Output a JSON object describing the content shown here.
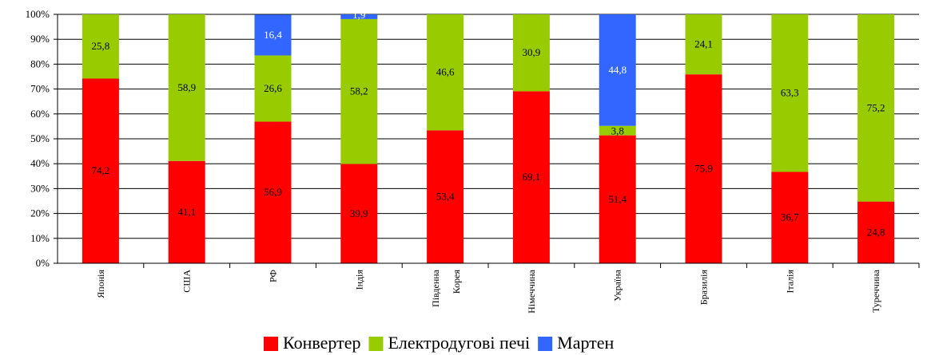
{
  "chart_data": {
    "type": "bar",
    "stacked": true,
    "percent_axis": true,
    "categories": [
      "Японія",
      "США",
      "РФ",
      "Індія",
      "Південна Корея",
      "Німеччина",
      "Україна",
      "Бразилія",
      "Італія",
      "Туреччина"
    ],
    "series": [
      {
        "name": "Конвертер",
        "color": "#ff0000",
        "values": [
          74.2,
          41.1,
          56.9,
          39.9,
          53.4,
          69.1,
          51.4,
          75.9,
          36.7,
          24.8
        ]
      },
      {
        "name": "Електродугові печі",
        "color": "#99cc00",
        "values": [
          25.8,
          58.9,
          26.6,
          58.2,
          46.6,
          30.9,
          3.8,
          24.1,
          63.3,
          75.2
        ]
      },
      {
        "name": "Мартен",
        "color": "#3366ff",
        "values": [
          0,
          0,
          16.4,
          1.9,
          0,
          0,
          44.8,
          0,
          0,
          0
        ]
      }
    ],
    "data_labels": [
      [
        "74,2",
        "41,1",
        "56,9",
        "39,9",
        "53,4",
        "69,1",
        "51,4",
        "75,9",
        "36,7",
        "24,8"
      ],
      [
        "25,8",
        "58,9",
        "26,6",
        "58,2",
        "46,6",
        "30,9",
        "3,8",
        "24,1",
        "63,3",
        "75,2"
      ],
      [
        "",
        "",
        "16,4",
        "1,9",
        "",
        "",
        "44,8",
        "",
        "",
        ""
      ]
    ],
    "y_ticks": [
      "0%",
      "10%",
      "20%",
      "30%",
      "40%",
      "50%",
      "60%",
      "70%",
      "80%",
      "90%",
      "100%"
    ],
    "ylim": [
      0,
      100
    ],
    "grid": true,
    "legend_position": "bottom",
    "title": "",
    "xlabel": "",
    "ylabel": ""
  }
}
